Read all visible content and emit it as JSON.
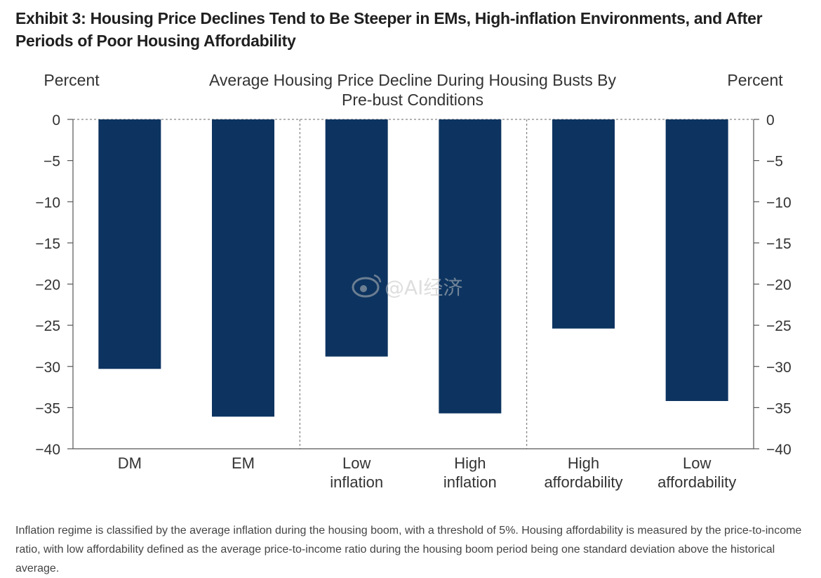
{
  "exhibit_title": "Exhibit 3: Housing Price Declines Tend to Be Steeper in EMs, High-inflation Environments, and After Periods of Poor Housing Affordability",
  "chart_data": {
    "type": "bar",
    "title_lines": [
      "Average Housing Price Decline During Housing Busts By",
      "Pre-bust Conditions"
    ],
    "ylabel_left": "Percent",
    "ylabel_right": "Percent",
    "ylim": [
      -40,
      0
    ],
    "yticks": [
      0,
      -5,
      -10,
      -15,
      -20,
      -25,
      -30,
      -35,
      -40
    ],
    "ytick_labels": [
      "0",
      "−5",
      "−10",
      "−15",
      "−20",
      "−25",
      "−30",
      "−35",
      "−40"
    ],
    "categories": [
      {
        "lines": [
          "DM"
        ]
      },
      {
        "lines": [
          "EM"
        ]
      },
      {
        "lines": [
          "Low",
          "inflation"
        ]
      },
      {
        "lines": [
          "High",
          "inflation"
        ]
      },
      {
        "lines": [
          "High",
          "affordability"
        ]
      },
      {
        "lines": [
          "Low",
          "affordability"
        ]
      }
    ],
    "values": [
      -30.3,
      -36.1,
      -28.8,
      -35.7,
      -25.4,
      -34.2
    ],
    "group_dividers_after": [
      1,
      3
    ],
    "bar_color": "#0d3460"
  },
  "footnote": "Inflation regime is classified by the average inflation during the housing boom, with a threshold of 5%. Housing affordability is measured by the price-to-income ratio, with low affordability defined as the average price-to-income ratio during the housing boom period being one standard deviation above the historical average.",
  "watermark": "@AI经济"
}
